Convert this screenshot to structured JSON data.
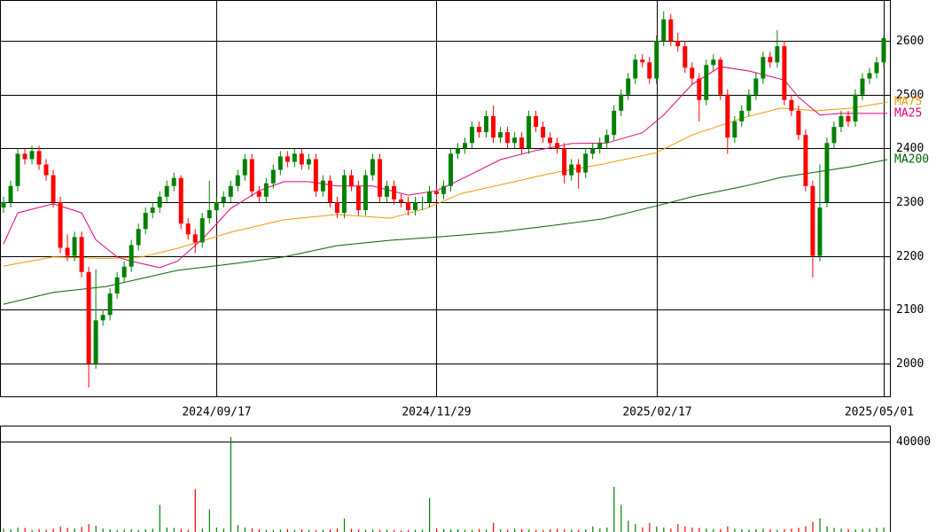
{
  "chart_data": {
    "type": "candlestick",
    "up_color": "#008000",
    "down_color": "#ff0000",
    "ylim": [
      1937,
      2676
    ],
    "yticks": [
      2000,
      2100,
      2200,
      2300,
      2400,
      2500,
      2600
    ],
    "xlim": [
      -0.5,
      125
    ],
    "xticks": [
      {
        "value": 30,
        "label": "2024/09/17"
      },
      {
        "value": 61,
        "label": "2024/11/29"
      },
      {
        "value": 92,
        "label": "2025/02/17"
      },
      {
        "value": 124,
        "label": "2025/05/01"
      }
    ],
    "ohlc": [
      [
        2290,
        2310,
        2280,
        2300
      ],
      [
        2300,
        2340,
        2290,
        2330
      ],
      [
        2330,
        2400,
        2320,
        2390
      ],
      [
        2390,
        2400,
        2370,
        2380
      ],
      [
        2380,
        2405,
        2370,
        2395
      ],
      [
        2395,
        2405,
        2360,
        2370
      ],
      [
        2370,
        2380,
        2340,
        2350
      ],
      [
        2350,
        2360,
        2290,
        2300
      ],
      [
        2300,
        2310,
        2205,
        2215
      ],
      [
        2215,
        2240,
        2190,
        2200
      ],
      [
        2200,
        2245,
        2190,
        2235
      ],
      [
        2235,
        2245,
        2160,
        2170
      ],
      [
        2170,
        2180,
        1955,
        2000
      ],
      [
        2000,
        2175,
        1990,
        2080
      ],
      [
        2080,
        2100,
        2070,
        2090
      ],
      [
        2090,
        2140,
        2080,
        2130
      ],
      [
        2130,
        2170,
        2120,
        2160
      ],
      [
        2160,
        2190,
        2150,
        2180
      ],
      [
        2180,
        2230,
        2170,
        2220
      ],
      [
        2220,
        2260,
        2210,
        2250
      ],
      [
        2250,
        2290,
        2240,
        2280
      ],
      [
        2280,
        2300,
        2270,
        2290
      ],
      [
        2290,
        2320,
        2280,
        2310
      ],
      [
        2310,
        2340,
        2300,
        2330
      ],
      [
        2330,
        2355,
        2320,
        2345
      ],
      [
        2345,
        2350,
        2250,
        2260
      ],
      [
        2260,
        2270,
        2230,
        2240
      ],
      [
        2240,
        2250,
        2205,
        2225
      ],
      [
        2225,
        2280,
        2215,
        2270
      ],
      [
        2270,
        2340,
        2260,
        2285
      ],
      [
        2285,
        2310,
        2275,
        2300
      ],
      [
        2300,
        2320,
        2290,
        2310
      ],
      [
        2310,
        2340,
        2300,
        2330
      ],
      [
        2330,
        2360,
        2320,
        2350
      ],
      [
        2350,
        2390,
        2340,
        2380
      ],
      [
        2380,
        2390,
        2310,
        2320
      ],
      [
        2320,
        2330,
        2300,
        2310
      ],
      [
        2310,
        2345,
        2300,
        2335
      ],
      [
        2335,
        2370,
        2325,
        2360
      ],
      [
        2360,
        2395,
        2350,
        2385
      ],
      [
        2385,
        2395,
        2365,
        2375
      ],
      [
        2375,
        2400,
        2365,
        2390
      ],
      [
        2390,
        2400,
        2360,
        2370
      ],
      [
        2370,
        2390,
        2360,
        2380
      ],
      [
        2380,
        2390,
        2310,
        2320
      ],
      [
        2320,
        2350,
        2310,
        2340
      ],
      [
        2340,
        2350,
        2290,
        2300
      ],
      [
        2300,
        2310,
        2270,
        2280
      ],
      [
        2280,
        2360,
        2270,
        2350
      ],
      [
        2350,
        2360,
        2320,
        2330
      ],
      [
        2330,
        2340,
        2275,
        2285
      ],
      [
        2285,
        2360,
        2275,
        2350
      ],
      [
        2350,
        2390,
        2340,
        2380
      ],
      [
        2380,
        2390,
        2300,
        2310
      ],
      [
        2310,
        2340,
        2300,
        2330
      ],
      [
        2330,
        2340,
        2295,
        2305
      ],
      [
        2305,
        2315,
        2290,
        2300
      ],
      [
        2300,
        2310,
        2275,
        2285
      ],
      [
        2285,
        2310,
        2275,
        2300
      ],
      [
        2300,
        2310,
        2285,
        2300
      ],
      [
        2300,
        2330,
        2290,
        2320
      ],
      [
        2320,
        2330,
        2305,
        2315
      ],
      [
        2315,
        2340,
        2305,
        2330
      ],
      [
        2330,
        2400,
        2320,
        2390
      ],
      [
        2390,
        2410,
        2380,
        2400
      ],
      [
        2400,
        2420,
        2390,
        2410
      ],
      [
        2410,
        2450,
        2400,
        2440
      ],
      [
        2440,
        2450,
        2420,
        2430
      ],
      [
        2430,
        2470,
        2420,
        2460
      ],
      [
        2460,
        2480,
        2410,
        2420
      ],
      [
        2420,
        2440,
        2410,
        2430
      ],
      [
        2430,
        2440,
        2400,
        2410
      ],
      [
        2410,
        2430,
        2400,
        2420
      ],
      [
        2420,
        2430,
        2390,
        2400
      ],
      [
        2400,
        2470,
        2390,
        2460
      ],
      [
        2460,
        2470,
        2430,
        2440
      ],
      [
        2440,
        2450,
        2410,
        2420
      ],
      [
        2420,
        2430,
        2400,
        2410
      ],
      [
        2410,
        2420,
        2390,
        2400
      ],
      [
        2400,
        2410,
        2335,
        2350
      ],
      [
        2350,
        2380,
        2340,
        2370
      ],
      [
        2370,
        2380,
        2325,
        2355
      ],
      [
        2355,
        2400,
        2345,
        2390
      ],
      [
        2390,
        2410,
        2380,
        2400
      ],
      [
        2400,
        2420,
        2390,
        2410
      ],
      [
        2410,
        2435,
        2400,
        2425
      ],
      [
        2425,
        2480,
        2415,
        2470
      ],
      [
        2470,
        2510,
        2460,
        2500
      ],
      [
        2500,
        2540,
        2490,
        2530
      ],
      [
        2530,
        2575,
        2520,
        2565
      ],
      [
        2565,
        2575,
        2550,
        2560
      ],
      [
        2560,
        2570,
        2520,
        2530
      ],
      [
        2530,
        2610,
        2520,
        2600
      ],
      [
        2600,
        2655,
        2590,
        2640
      ],
      [
        2640,
        2650,
        2590,
        2600
      ],
      [
        2600,
        2615,
        2580,
        2590
      ],
      [
        2590,
        2600,
        2540,
        2550
      ],
      [
        2550,
        2560,
        2520,
        2530
      ],
      [
        2530,
        2540,
        2450,
        2490
      ],
      [
        2490,
        2565,
        2480,
        2555
      ],
      [
        2555,
        2575,
        2545,
        2565
      ],
      [
        2565,
        2570,
        2490,
        2500
      ],
      [
        2500,
        2510,
        2390,
        2420
      ],
      [
        2420,
        2460,
        2410,
        2450
      ],
      [
        2450,
        2480,
        2440,
        2470
      ],
      [
        2470,
        2510,
        2460,
        2500
      ],
      [
        2500,
        2540,
        2490,
        2530
      ],
      [
        2530,
        2580,
        2520,
        2570
      ],
      [
        2570,
        2580,
        2550,
        2560
      ],
      [
        2560,
        2620,
        2550,
        2590
      ],
      [
        2590,
        2600,
        2480,
        2490
      ],
      [
        2490,
        2500,
        2460,
        2470
      ],
      [
        2470,
        2480,
        2415,
        2425
      ],
      [
        2425,
        2435,
        2320,
        2330
      ],
      [
        2330,
        2340,
        2160,
        2200
      ],
      [
        2200,
        2370,
        2190,
        2290
      ],
      [
        2300,
        2420,
        2290,
        2410
      ],
      [
        2410,
        2450,
        2400,
        2440
      ],
      [
        2440,
        2470,
        2430,
        2460
      ],
      [
        2460,
        2470,
        2440,
        2450
      ],
      [
        2450,
        2510,
        2440,
        2500
      ],
      [
        2500,
        2540,
        2490,
        2530
      ],
      [
        2530,
        2550,
        2520,
        2540
      ],
      [
        2540,
        2570,
        2530,
        2560
      ],
      [
        2560,
        2610,
        2550,
        2605
      ]
    ],
    "moving_averages": [
      {
        "name": "MA75",
        "color": "#f39800",
        "x": [
          0,
          7,
          14.5,
          19.5,
          24.5,
          32,
          39.5,
          47,
          54.5,
          59.5,
          64.5,
          72,
          77,
          84.5,
          92,
          97,
          104.5,
          109.5,
          114.5,
          119.5,
          124.5
        ],
        "values": [
          2181,
          2198,
          2195,
          2198,
          2214,
          2244,
          2267,
          2277,
          2270,
          2288,
          2316,
          2338,
          2353,
          2371,
          2392,
          2425,
          2458,
          2475,
          2470,
          2475,
          2486
        ]
      },
      {
        "name": "MA25",
        "color": "#e4007f",
        "x": [
          0,
          2,
          7,
          11,
          13,
          16,
          18,
          22,
          24.5,
          28,
          32,
          36,
          39.5,
          43,
          47,
          52,
          57,
          61,
          65,
          70,
          75,
          80,
          85,
          90,
          93,
          97,
          101,
          105,
          110,
          112,
          115,
          118,
          124.5
        ],
        "values": [
          2222,
          2280,
          2297,
          2280,
          2230,
          2198,
          2190,
          2178,
          2190,
          2231,
          2288,
          2321,
          2338,
          2338,
          2330,
          2330,
          2313,
          2321,
          2346,
          2379,
          2396,
          2409,
          2410,
          2429,
          2462,
          2519,
          2552,
          2544,
          2527,
          2495,
          2462,
          2465,
          2465
        ]
      },
      {
        "name": "MA200",
        "color": "#006400",
        "x": [
          0,
          7,
          14.5,
          24.5,
          32,
          39.5,
          47,
          54.5,
          62,
          69.5,
          77,
          84.5,
          92,
          97,
          104.5,
          109.5,
          114.5,
          119.5,
          124.5
        ],
        "values": [
          2110,
          2132,
          2143,
          2173,
          2185,
          2198,
          2219,
          2229,
          2236,
          2244,
          2256,
          2269,
          2293,
          2310,
          2330,
          2346,
          2356,
          2366,
          2379
        ]
      }
    ],
    "volume": {
      "ylim": [
        0,
        47059
      ],
      "yticks": [
        40000
      ],
      "values": [
        1500,
        1200,
        2000,
        1800,
        900,
        1300,
        1000,
        1500,
        2500,
        1800,
        1600,
        2200,
        3500,
        2800,
        1500,
        1200,
        900,
        1100,
        1300,
        1000,
        1200,
        1500,
        12000,
        2000,
        1800,
        1400,
        1000,
        19000,
        1500,
        10000,
        2000,
        1500,
        42000,
        3000,
        2000,
        1500,
        1200,
        1000,
        900,
        1100,
        1300,
        1000,
        1200,
        900,
        800,
        1000,
        1200,
        1500,
        6000,
        1400,
        1100,
        1000,
        1200,
        900,
        1000,
        800,
        700,
        900,
        1000,
        1100,
        15000,
        1500,
        1300,
        1100,
        1200,
        1000,
        900,
        1300,
        1100,
        4000,
        1200,
        1100,
        1500,
        1300,
        1100,
        1000,
        900,
        1200,
        1500,
        1300,
        1100,
        1000,
        1200,
        2500,
        1500,
        2000,
        20000,
        12000,
        5000,
        3500,
        2000,
        4000,
        2500,
        2000,
        1500,
        3500,
        2500,
        2000,
        1800,
        1500,
        1300,
        1200,
        2500,
        1500,
        1200,
        1100,
        1300,
        1500,
        1200,
        1000,
        1200,
        1500,
        1800,
        2500,
        4500,
        6000,
        2500,
        1800,
        1500,
        1300,
        1200,
        1400,
        1500,
        1800,
        2000
      ]
    }
  }
}
